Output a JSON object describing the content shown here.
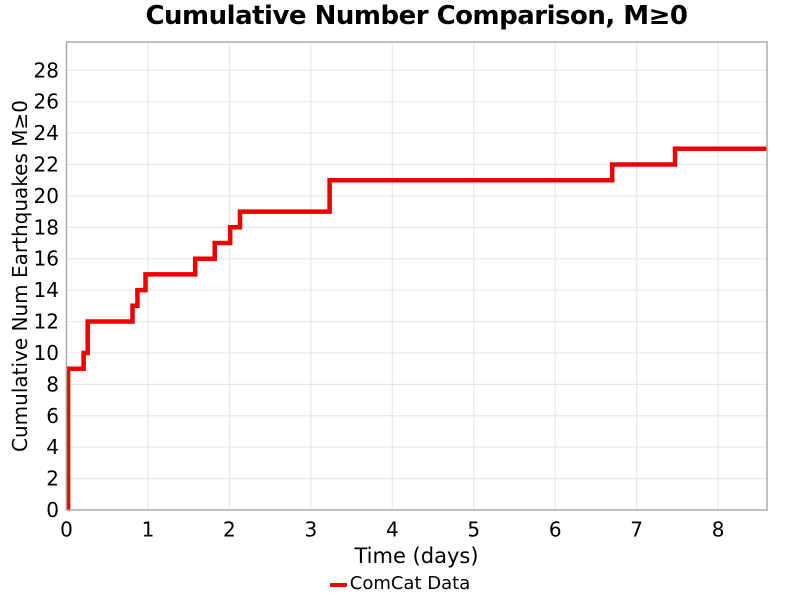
{
  "chart_data": {
    "type": "line",
    "subtype": "step-post",
    "title": "Cumulative Number Comparison, M≥0",
    "xlabel": "Time (days)",
    "ylabel": "Cumulative Num Earthquakes M≥0",
    "xlim": [
      0,
      8.6
    ],
    "ylim": [
      0,
      29.8
    ],
    "xticks": [
      0,
      1,
      2,
      3,
      4,
      5,
      6,
      7,
      8
    ],
    "yticks": [
      0,
      2,
      4,
      6,
      8,
      10,
      12,
      14,
      16,
      18,
      20,
      22,
      24,
      26,
      28
    ],
    "grid": true,
    "legend": {
      "position": "bottom-center",
      "entries": [
        {
          "label": "ComCat Data",
          "color": "#EE0000"
        }
      ]
    },
    "series": [
      {
        "name": "ComCat Data",
        "color": "#EE0000",
        "line_width": 4.5,
        "start": {
          "t": 0.02,
          "cum": 0
        },
        "steps": [
          {
            "t": 0.02,
            "cum": 9
          },
          {
            "t": 0.21,
            "cum": 10
          },
          {
            "t": 0.26,
            "cum": 12
          },
          {
            "t": 0.81,
            "cum": 13
          },
          {
            "t": 0.87,
            "cum": 14
          },
          {
            "t": 0.97,
            "cum": 15
          },
          {
            "t": 1.58,
            "cum": 16
          },
          {
            "t": 1.82,
            "cum": 17
          },
          {
            "t": 2.01,
            "cum": 18
          },
          {
            "t": 2.13,
            "cum": 19
          },
          {
            "t": 3.23,
            "cum": 21
          },
          {
            "t": 6.7,
            "cum": 22
          },
          {
            "t": 7.47,
            "cum": 23
          }
        ],
        "t_end": 8.6
      }
    ],
    "colors": {
      "line": "#EE0000",
      "grid": "#E8E8E8",
      "spine": "#A6A6A6",
      "text": "#000000",
      "background": "#FFFFFF"
    }
  }
}
